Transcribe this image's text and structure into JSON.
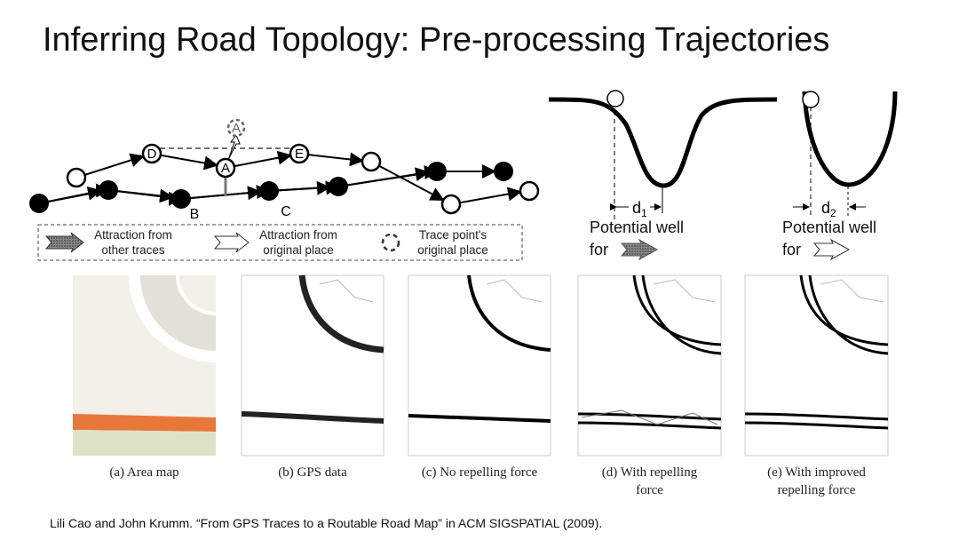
{
  "slide": {
    "title": "Inferring Road Topology: Pre-processing Trajectories",
    "citation": "Lili Cao and John Krumm. “From GPS Traces to a Routable Road Map” in ACM SIGSPATIAL (2009)."
  },
  "diagram": {
    "node_labels": {
      "d": "D",
      "a": "A",
      "e": "E",
      "a_ghost": "A",
      "b": "B",
      "c": "C"
    },
    "legend": [
      {
        "icon": "shaded-arrow-icon",
        "line1": "Attraction from",
        "line2": "other traces"
      },
      {
        "icon": "hollow-arrow-icon",
        "line1": "Attraction from",
        "line2": "original place"
      },
      {
        "icon": "dashed-circle-icon",
        "line1": "Trace point's",
        "line2": "original place"
      }
    ]
  },
  "wells": [
    {
      "d_label": "d",
      "d_sub": "1",
      "line1": "Potential well",
      "line2": "for",
      "icon": "shaded-arrow-icon"
    },
    {
      "d_label": "d",
      "d_sub": "2",
      "line1": "Potential well",
      "line2": "for",
      "icon": "hollow-arrow-icon"
    }
  ],
  "panels": [
    {
      "caption1": "(a) Area map",
      "caption2": ""
    },
    {
      "caption1": "(b) GPS data",
      "caption2": ""
    },
    {
      "caption1": "(c) No repelling force",
      "caption2": ""
    },
    {
      "caption1": "(d) With repelling",
      "caption2": "force"
    },
    {
      "caption1": "(e) With improved",
      "caption2": "repelling force"
    }
  ],
  "colors": {
    "map_bg": "#f3f0e8",
    "map_block": "#e3e0d8",
    "map_road": "#e8783a",
    "map_park": "#dde3c6"
  }
}
